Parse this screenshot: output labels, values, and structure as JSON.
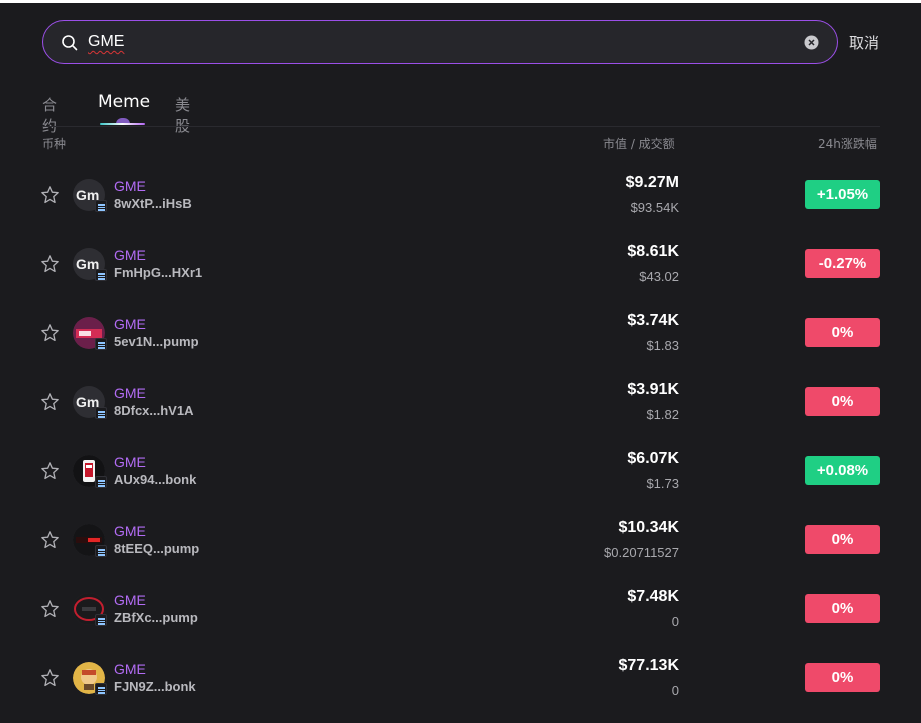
{
  "search": {
    "value": "GME",
    "cancel_label": "取消"
  },
  "tabs": [
    {
      "label": "合约",
      "active": false
    },
    {
      "label": "Meme",
      "active": true
    },
    {
      "label": "美股",
      "active": false
    }
  ],
  "columns": {
    "coin": "币种",
    "mcap_volume": "市值 / 成交额",
    "change": "24h涨跌幅"
  },
  "colors": {
    "accent": "#9b4fe8",
    "token_name": "#b26cf4",
    "up": "#1fcf84",
    "down": "#ef4a6a"
  },
  "rows": [
    {
      "name": "GME",
      "address": "8wXtP...iHsB",
      "mcap": "$9.27M",
      "volume": "$93.54K",
      "change": "+1.05%",
      "direction": "up",
      "avatar_text": "Gm",
      "icon": "gme-avatar-icon"
    },
    {
      "name": "GME",
      "address": "FmHpG...HXr1",
      "mcap": "$8.61K",
      "volume": "$43.02",
      "change": "-0.27%",
      "direction": "down",
      "avatar_text": "Gm",
      "icon": "gme-avatar-icon"
    },
    {
      "name": "GME",
      "address": "5ev1N...pump",
      "mcap": "$3.74K",
      "volume": "$1.83",
      "change": "0%",
      "direction": "down",
      "avatar_text": "",
      "icon": "gamestop-logo-icon"
    },
    {
      "name": "GME",
      "address": "8Dfcx...hV1A",
      "mcap": "$3.91K",
      "volume": "$1.82",
      "change": "0%",
      "direction": "down",
      "avatar_text": "Gm",
      "icon": "gme-avatar-icon"
    },
    {
      "name": "GME",
      "address": "AUx94...bonk",
      "mcap": "$6.07K",
      "volume": "$1.73",
      "change": "+0.08%",
      "direction": "up",
      "avatar_text": "",
      "icon": "phone-avatar-icon"
    },
    {
      "name": "GME",
      "address": "8tEEQ...pump",
      "mcap": "$10.34K",
      "volume": "$0.20711527",
      "change": "0%",
      "direction": "down",
      "avatar_text": "",
      "icon": "gamestop-banner-icon"
    },
    {
      "name": "GME",
      "address": "ZBfXc...pump",
      "mcap": "$7.48K",
      "volume": "0",
      "change": "0%",
      "direction": "down",
      "avatar_text": "",
      "icon": "ring-avatar-icon"
    },
    {
      "name": "GME",
      "address": "FJN9Z...bonk",
      "mcap": "$77.13K",
      "volume": "0",
      "change": "0%",
      "direction": "down",
      "avatar_text": "",
      "icon": "cartoon-avatar-icon"
    }
  ]
}
